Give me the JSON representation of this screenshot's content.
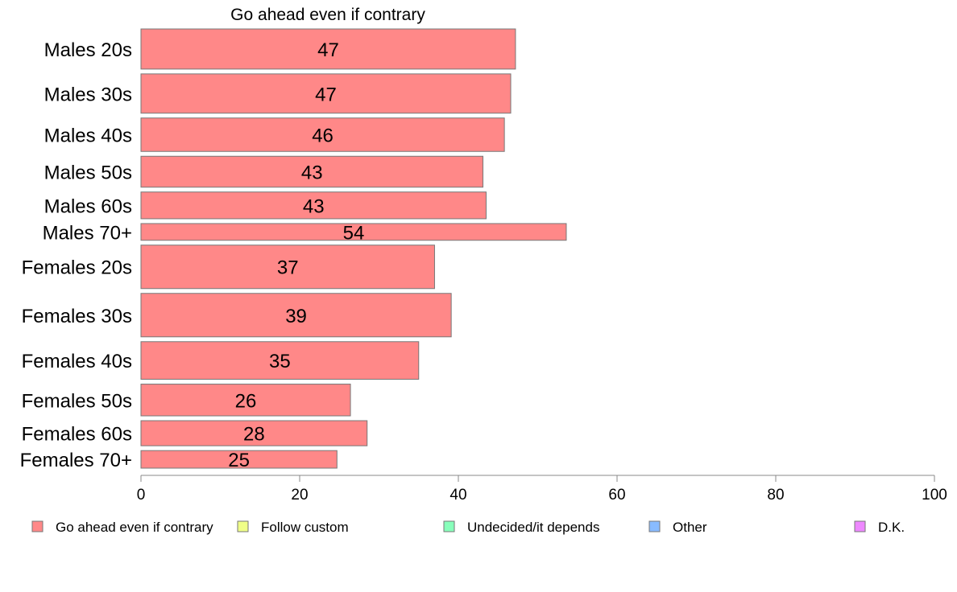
{
  "chart_data": {
    "type": "bar",
    "orientation": "horizontal",
    "title": "Go ahead even if contrary",
    "xlabel": "",
    "ylabel": "",
    "xlim": [
      0,
      100
    ],
    "x_ticks": [
      0,
      20,
      40,
      60,
      80,
      100
    ],
    "grid": false,
    "legend_position": "bottom",
    "categories": [
      "Males 20s",
      "Males 30s",
      "Males 40s",
      "Males 50s",
      "Males 60s",
      "Males 70+",
      "Females 20s",
      "Females 30s",
      "Females 40s",
      "Females 50s",
      "Females 60s",
      "Females 70+"
    ],
    "bar_thickness_weights": [
      48,
      47,
      40,
      37,
      32,
      20,
      52,
      52,
      45,
      38,
      30,
      21
    ],
    "series": [
      {
        "name": "Go ahead even if contrary",
        "color": "#ff8888",
        "values": [
          47.2,
          46.6,
          45.8,
          43.1,
          43.5,
          53.6,
          37.0,
          39.1,
          35.0,
          26.4,
          28.5,
          24.7
        ],
        "labels": [
          "47",
          "47",
          "46",
          "43",
          "43",
          "54",
          "37",
          "39",
          "35",
          "26",
          "28",
          "25"
        ]
      }
    ],
    "legend": [
      {
        "label": "Go ahead even if contrary",
        "color": "#ff8888"
      },
      {
        "label": "Follow custom",
        "color": "#f0ff88"
      },
      {
        "label": "Undecided/it depends",
        "color": "#88ffbb"
      },
      {
        "label": "Other",
        "color": "#88bbff"
      },
      {
        "label": "D.K.",
        "color": "#ee88ff"
      }
    ],
    "bar_edge_color": "#777777",
    "axis_color": "#888888"
  }
}
